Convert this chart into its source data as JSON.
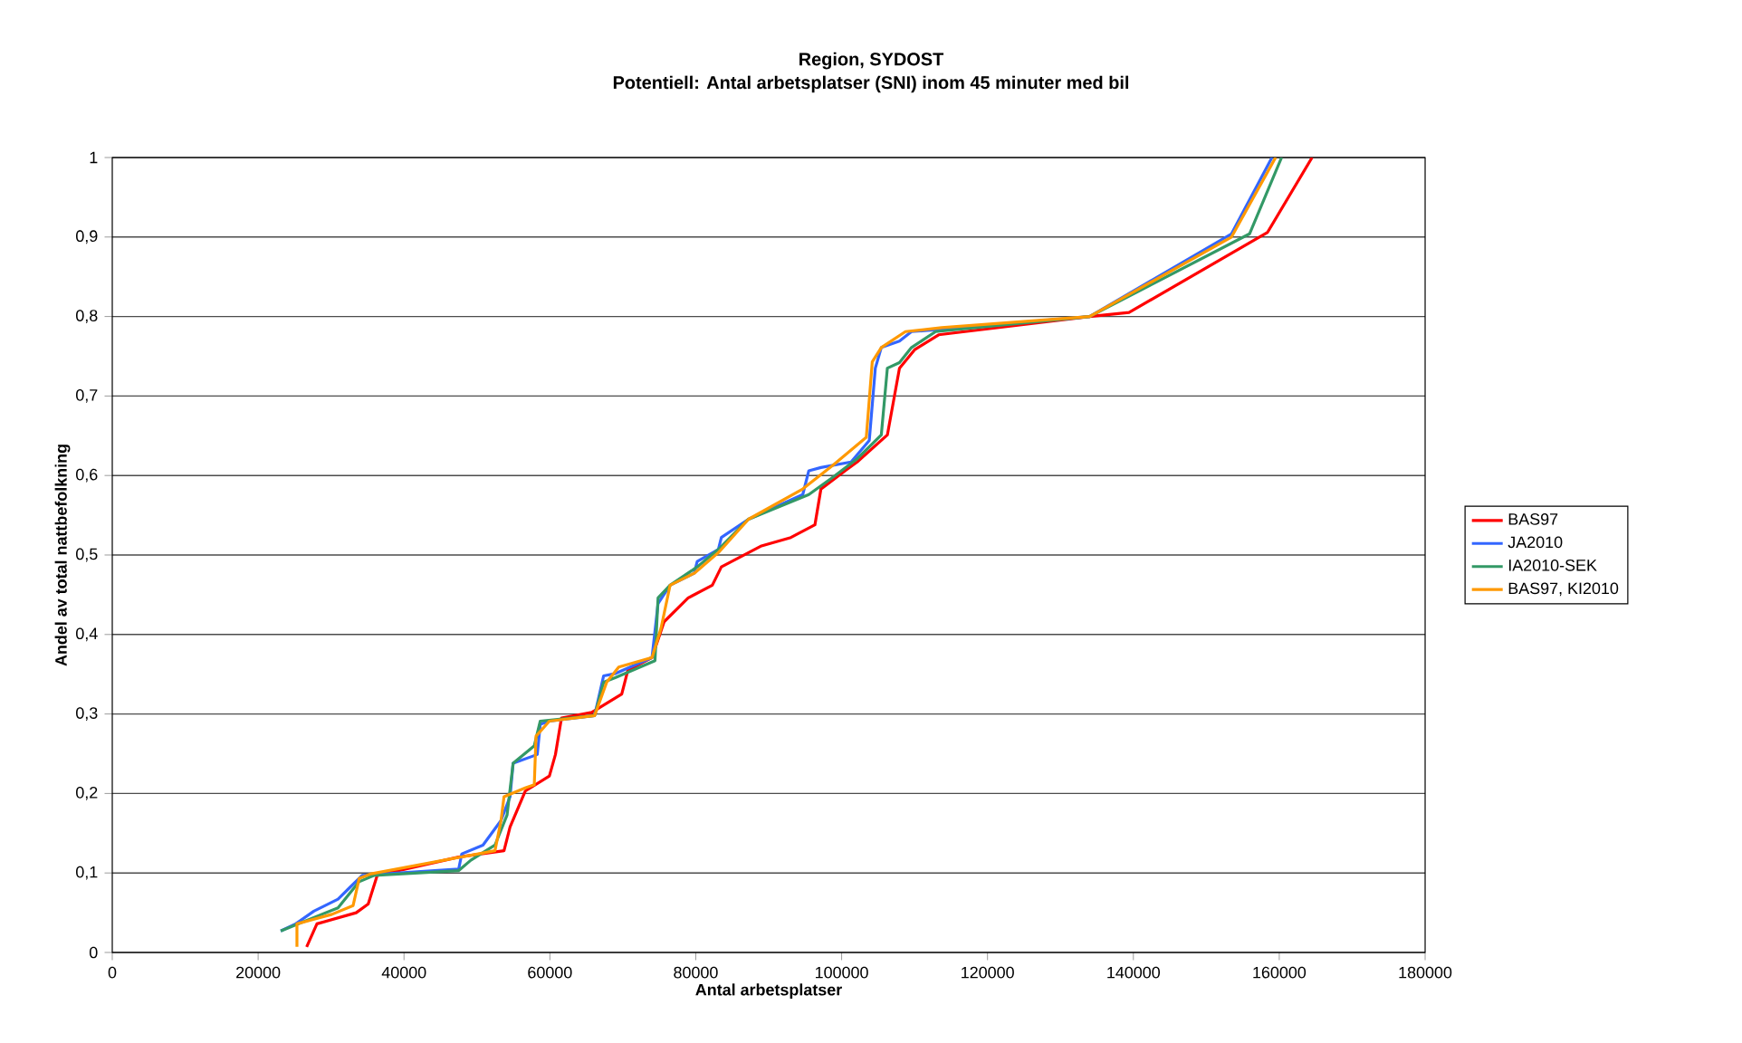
{
  "chart_data": {
    "type": "line",
    "title": "Region, SYDOST",
    "subtitle": "Potentiell: Antal arbetsplatser (SNI) inom 45 minuter med bil",
    "xlabel": "Antal arbetsplatser",
    "ylabel": "Andel av total nattbefolkning",
    "xlim": [
      0,
      180000
    ],
    "xticks": [
      0,
      20000,
      40000,
      60000,
      80000,
      100000,
      120000,
      140000,
      160000,
      180000
    ],
    "ylim": [
      0,
      1
    ],
    "yticks": [
      0,
      {
        "value": 0.1,
        "label": "0,1"
      },
      {
        "value": 0.2,
        "label": "0,2"
      },
      {
        "value": 0.3,
        "label": "0,3"
      },
      {
        "value": 0.4,
        "label": "0,4"
      },
      {
        "value": 0.5,
        "label": "0,5"
      },
      {
        "value": 0.6,
        "label": "0,6"
      },
      {
        "value": 0.7,
        "label": "0,7"
      },
      {
        "value": 0.8,
        "label": "0,8"
      },
      {
        "value": 0.9,
        "label": "0,9"
      },
      1
    ],
    "grid": "y",
    "legend": "right",
    "marker": "none",
    "line_style": "solid",
    "series": [
      {
        "name": "BAS97",
        "color": "#ff0000",
        "x": [
          26650,
          28060,
          33440,
          35090,
          36330,
          47500,
          53710,
          54540,
          56620,
          59930,
          60760,
          61590,
          65730,
          69850,
          70690,
          74000,
          75660,
          78960,
          82270,
          83510,
          88900,
          93040,
          96340,
          97160,
          100470,
          102130,
          106270,
          107930,
          109990,
          113300,
          134000,
          139400,
          158400,
          164500
        ],
        "values": [
          0.007,
          0.036,
          0.05,
          0.061,
          0.097,
          0.12,
          0.128,
          0.158,
          0.203,
          0.222,
          0.249,
          0.295,
          0.302,
          0.325,
          0.355,
          0.371,
          0.416,
          0.446,
          0.462,
          0.485,
          0.511,
          0.522,
          0.538,
          0.583,
          0.606,
          0.617,
          0.651,
          0.735,
          0.758,
          0.777,
          0.8,
          0.805,
          0.906,
          1.0
        ]
      },
      {
        "name": "JA2010",
        "color": "#3366ff",
        "x": [
          23100,
          25150,
          27640,
          30950,
          32600,
          34270,
          47500,
          47920,
          50820,
          53300,
          54540,
          54960,
          58270,
          58680,
          59930,
          66130,
          67370,
          69030,
          74000,
          74830,
          76480,
          79790,
          80200,
          83100,
          83510,
          87230,
          94670,
          95500,
          97160,
          101300,
          103790,
          104620,
          105440,
          107930,
          109580,
          113720,
          134000,
          153450,
          159000
        ],
        "values": [
          0.027,
          0.036,
          0.052,
          0.067,
          0.082,
          0.097,
          0.105,
          0.124,
          0.135,
          0.166,
          0.196,
          0.238,
          0.249,
          0.287,
          0.291,
          0.298,
          0.348,
          0.351,
          0.371,
          0.439,
          0.462,
          0.477,
          0.492,
          0.507,
          0.522,
          0.545,
          0.576,
          0.606,
          0.61,
          0.617,
          0.644,
          0.735,
          0.761,
          0.769,
          0.781,
          0.784,
          0.8,
          0.904,
          1.0
        ]
      },
      {
        "name": "IA2010-SEK",
        "color": "#339966",
        "x": [
          23100,
          27640,
          30950,
          33850,
          35920,
          47500,
          49160,
          52470,
          54130,
          54960,
          57860,
          58680,
          66130,
          67370,
          69030,
          74410,
          74830,
          76480,
          80200,
          83100,
          87230,
          95500,
          98820,
          102130,
          105440,
          106270,
          107930,
          109580,
          112890,
          134000,
          155930,
          160320
        ],
        "values": [
          0.027,
          0.044,
          0.056,
          0.089,
          0.097,
          0.103,
          0.116,
          0.135,
          0.173,
          0.238,
          0.26,
          0.291,
          0.298,
          0.34,
          0.346,
          0.367,
          0.446,
          0.462,
          0.485,
          0.507,
          0.545,
          0.576,
          0.598,
          0.621,
          0.651,
          0.735,
          0.742,
          0.761,
          0.781,
          0.8,
          0.904,
          1.0
        ]
      },
      {
        "name": "BAS97, KI2010",
        "color": "#ff9900",
        "x": [
          25320,
          25320,
          30120,
          33020,
          33850,
          35510,
          52470,
          53300,
          53710,
          56620,
          57860,
          58100,
          59930,
          66130,
          67790,
          69440,
          74000,
          75240,
          76480,
          79790,
          83100,
          87230,
          94670,
          98820,
          103380,
          104200,
          105440,
          108750,
          113720,
          134000,
          153450,
          159500
        ],
        "values": [
          0.007,
          0.036,
          0.048,
          0.059,
          0.093,
          0.099,
          0.128,
          0.166,
          0.196,
          0.207,
          0.211,
          0.272,
          0.291,
          0.298,
          0.34,
          0.359,
          0.371,
          0.408,
          0.462,
          0.477,
          0.503,
          0.545,
          0.583,
          0.613,
          0.648,
          0.743,
          0.761,
          0.781,
          0.786,
          0.8,
          0.9,
          1.0
        ]
      }
    ]
  }
}
